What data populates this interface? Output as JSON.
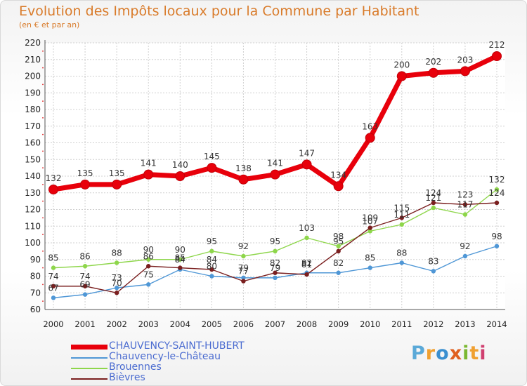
{
  "title": "Evolution des Impôts locaux pour la Commune par Habitant",
  "subtitle": "(en € et par an)",
  "brand": {
    "text": "Proxiti",
    "colors": [
      "#5aa9d8",
      "#f0a030",
      "#3a8fd0",
      "#e06020",
      "#7ab830",
      "#f0a030",
      "#d04070"
    ]
  },
  "chart_data": {
    "type": "line",
    "x": [
      "2000",
      "2001",
      "2002",
      "2003",
      "2004",
      "2005",
      "2006",
      "2007",
      "2008",
      "2009",
      "2010",
      "2011",
      "2012",
      "2013",
      "2014"
    ],
    "ylim": [
      60,
      220
    ],
    "yticks": [
      60,
      70,
      80,
      90,
      100,
      110,
      120,
      130,
      140,
      150,
      160,
      170,
      180,
      190,
      200,
      210,
      220
    ],
    "grid": true,
    "legend_position": "bottom-left",
    "series": [
      {
        "name": "CHAUVENCY-SAINT-HUBERT",
        "color": "#e8000b",
        "values": [
          132,
          135,
          135,
          141,
          140,
          145,
          138,
          141,
          147,
          134,
          163,
          200,
          202,
          203,
          212
        ]
      },
      {
        "name": "Chauvency-le-Château",
        "color": "#4f97d6",
        "values": [
          67,
          69,
          73,
          75,
          84,
          80,
          79,
          79,
          82,
          82,
          85,
          88,
          83,
          92,
          98
        ]
      },
      {
        "name": "Brouennes",
        "color": "#8ed64b",
        "values": [
          85,
          86,
          88,
          90,
          90,
          95,
          92,
          95,
          103,
          98,
          107,
          111,
          121,
          117,
          132
        ]
      },
      {
        "name": "Bièvres",
        "color": "#7a1f1f",
        "values": [
          74,
          74,
          70,
          86,
          85,
          84,
          77,
          82,
          81,
          95,
          109,
          115,
          124,
          123,
          124
        ]
      }
    ]
  }
}
